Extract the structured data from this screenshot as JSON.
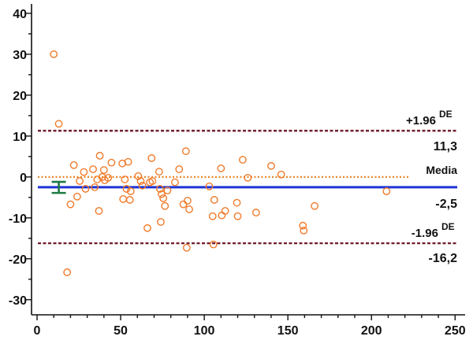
{
  "chart_data": {
    "type": "scatter",
    "xlim": [
      -3.3,
      256
    ],
    "ylim": [
      -33.7,
      42.3
    ],
    "x_ticks": [
      0,
      50,
      100,
      150,
      200,
      250
    ],
    "y_ticks": [
      -30,
      -20,
      -10,
      0,
      10,
      20,
      30,
      40
    ],
    "grid": false,
    "point_color": "#f07b2b",
    "points": [
      [
        10,
        30
      ],
      [
        13,
        13
      ],
      [
        18,
        -23.3
      ],
      [
        20,
        -6.7
      ],
      [
        22,
        2.9
      ],
      [
        24,
        -4.8
      ],
      [
        25.5,
        -1
      ],
      [
        28,
        1.2
      ],
      [
        29,
        -2.9
      ],
      [
        33.5,
        1.9
      ],
      [
        34.5,
        -2.5
      ],
      [
        36,
        -0.6
      ],
      [
        37.5,
        5.2
      ],
      [
        37,
        -8.3
      ],
      [
        39,
        0
      ],
      [
        40,
        1.7
      ],
      [
        40.5,
        -0.8
      ],
      [
        42.5,
        -0.2
      ],
      [
        44.5,
        3.5
      ],
      [
        51,
        3.3
      ],
      [
        51.5,
        -5.4
      ],
      [
        52.5,
        -0.6
      ],
      [
        53.5,
        -2.9
      ],
      [
        54.5,
        3.7
      ],
      [
        55.5,
        -5.6
      ],
      [
        56,
        -3.5
      ],
      [
        60.5,
        0.2
      ],
      [
        62,
        -1
      ],
      [
        63,
        -2.1
      ],
      [
        66,
        -12.5
      ],
      [
        67.5,
        -1.3
      ],
      [
        68.5,
        4.6
      ],
      [
        69,
        -1
      ],
      [
        73,
        1.3
      ],
      [
        73.5,
        -2.9
      ],
      [
        74,
        -11
      ],
      [
        74.5,
        -4.2
      ],
      [
        75.5,
        -5.2
      ],
      [
        76.5,
        -7.1
      ],
      [
        78,
        -3.3
      ],
      [
        82.5,
        -1.3
      ],
      [
        85,
        1.9
      ],
      [
        87.5,
        -6.7
      ],
      [
        89,
        6.3
      ],
      [
        89.5,
        -17.3
      ],
      [
        90,
        -5.8
      ],
      [
        91,
        -7.9
      ],
      [
        103,
        -2.3
      ],
      [
        105,
        -9.6
      ],
      [
        105.5,
        -16.5
      ],
      [
        106,
        -5.6
      ],
      [
        110,
        2.1
      ],
      [
        110.5,
        -9.4
      ],
      [
        112.5,
        -8.3
      ],
      [
        119.5,
        -6.3
      ],
      [
        120,
        -9.6
      ],
      [
        123,
        4.2
      ],
      [
        126,
        -0.2
      ],
      [
        131,
        -8.7
      ],
      [
        140,
        2.7
      ],
      [
        146,
        0.6
      ],
      [
        159,
        -11.9
      ],
      [
        159.5,
        -13.1
      ],
      [
        166,
        -7.1
      ],
      [
        209,
        -3.5
      ]
    ],
    "reference_lines": [
      {
        "y": 11.3,
        "color": "#72202f",
        "label": "+1.96",
        "label_sup": "DE",
        "value_label": "11,3"
      },
      {
        "y": -2.5,
        "color": "#1d33d6",
        "label": "Media",
        "value_label": "-2,5"
      },
      {
        "y": 0,
        "color": "#e8862a"
      },
      {
        "y": -16.2,
        "color": "#72202f",
        "label": "-1.96",
        "label_sup": "DE",
        "value_label": "-16,2"
      }
    ],
    "mean_ci": {
      "x": 13,
      "low": -3.9,
      "high": -1.2,
      "color": "#1e7a44"
    }
  }
}
